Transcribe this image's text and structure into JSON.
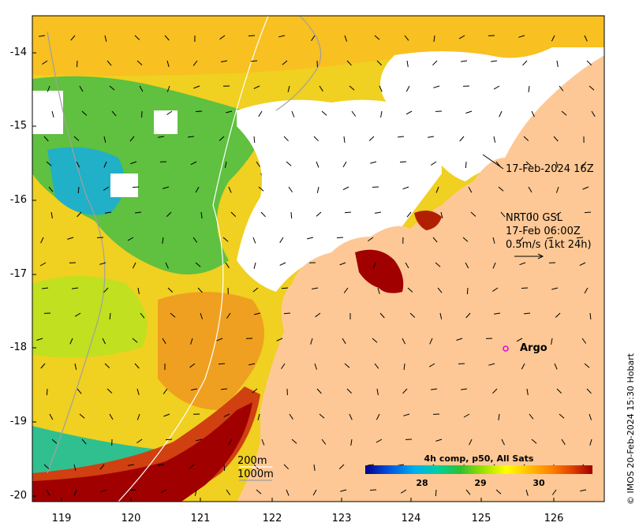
{
  "map": {
    "y_ticks": [
      "-14",
      "-15",
      "-16",
      "-17",
      "-18",
      "-19",
      "-20"
    ],
    "x_ticks": [
      "119",
      "120",
      "121",
      "122",
      "123",
      "124",
      "125",
      "126"
    ],
    "timestamp_label": "17-Feb-2024 16Z",
    "current_info": {
      "line1": "NRT00 GSL",
      "line2": "17-Feb 06:00Z",
      "line3": "0.5m/s (1kt 24h)"
    },
    "argo_label": "Argo",
    "isobath_200": "200m",
    "isobath_1000": "1000m",
    "colorbar": {
      "title": "4h comp, p50, All Sats",
      "ticks": [
        "28",
        "29",
        "30"
      ],
      "colors": [
        "#00008b",
        "#0050e0",
        "#00b0f0",
        "#00d0a0",
        "#30c030",
        "#a0e000",
        "#ffff00",
        "#ffc000",
        "#ff8000",
        "#e04000",
        "#a00000"
      ]
    },
    "credit": "© IMOS 20-Feb-2024 15:30 Hobart",
    "colors": {
      "land": "#fdc895",
      "argo_marker": "#e000e0"
    }
  }
}
